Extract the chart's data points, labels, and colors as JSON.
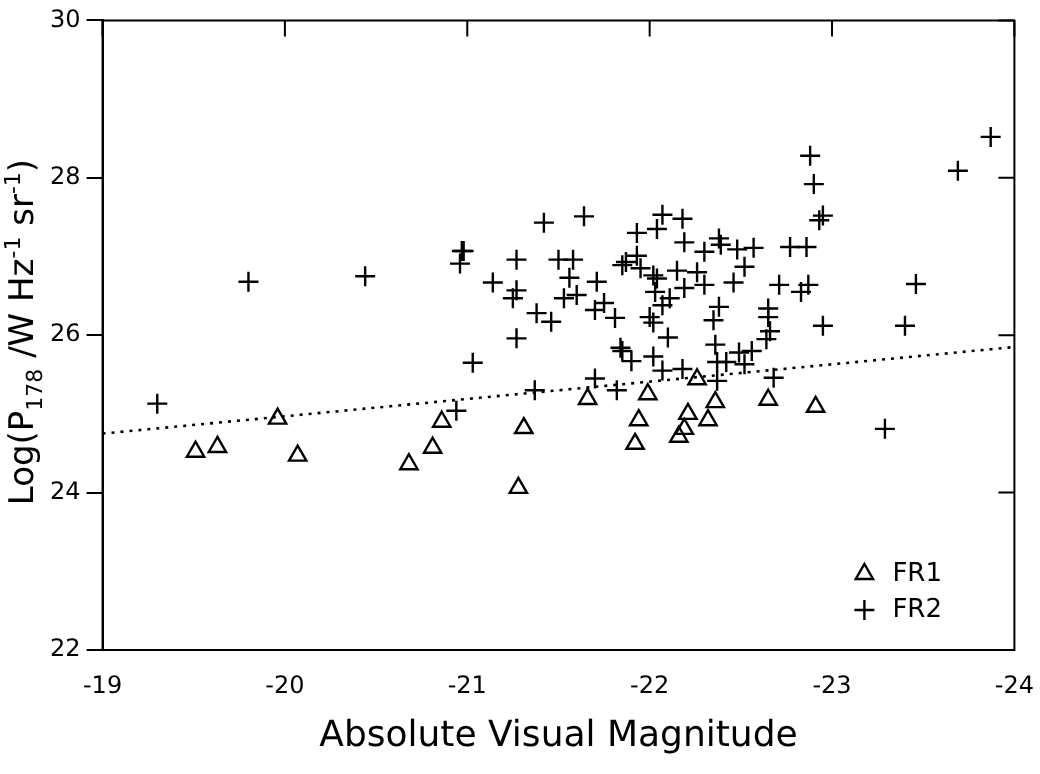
{
  "chart_data": {
    "type": "scatter",
    "xlabel": "Absolute Visual Magnitude",
    "ylabel": "Log(P$_{178}$ /W Hz$^{-1}$ sr$^{-1}$)",
    "xlim": [
      -19,
      -24
    ],
    "xticks": [
      -19,
      -20,
      -21,
      -22,
      -23,
      -24
    ],
    "ylim": [
      22,
      30
    ],
    "yticks": [
      22,
      24,
      26,
      28,
      30
    ],
    "grid": false,
    "legend": "bottom right",
    "series": [
      {
        "name": "FR1",
        "type": "scatter",
        "marker": "triangle",
        "color": "#000000",
        "x": [
          -19.51,
          -19.63,
          -19.96,
          -20.07,
          -20.68,
          -20.81,
          -20.86,
          -21.28,
          -21.31,
          -21.66,
          -21.99,
          -21.94,
          -21.92,
          -22.16,
          -22.19,
          -22.21,
          -22.26,
          -22.32,
          -22.36,
          -22.65,
          -22.91
        ],
        "values": [
          24.52,
          24.58,
          24.94,
          24.47,
          24.36,
          24.57,
          24.9,
          24.06,
          24.82,
          25.19,
          25.25,
          24.92,
          24.62,
          24.71,
          24.81,
          25.0,
          25.44,
          24.92,
          25.15,
          25.18,
          25.09
        ]
      },
      {
        "name": "FR2",
        "type": "scatter",
        "marker": "cross",
        "color": "#000000",
        "x": [
          -19.3,
          -19.8,
          -20.44,
          -20.97,
          -20.98,
          -20.96,
          -20.94,
          -21.03,
          -21.14,
          -21.27,
          -21.42,
          -21.27,
          -21.25,
          -21.27,
          -21.38,
          -21.46,
          -21.37,
          -21.5,
          -21.58,
          -21.56,
          -21.53,
          -21.6,
          -21.64,
          -21.71,
          -21.7,
          -21.75,
          -21.81,
          -21.85,
          -21.87,
          -21.93,
          -21.93,
          -21.95,
          -22.04,
          -22.07,
          -22.18,
          -22.02,
          -22.04,
          -22.03,
          -22.07,
          -22.0,
          -22.02,
          -22.11,
          -22.15,
          -22.19,
          -22.19,
          -22.26,
          -22.3,
          -22.3,
          -22.38,
          -22.39,
          -22.48,
          -22.57,
          -22.52,
          -22.46,
          -22.38,
          -22.35,
          -22.1,
          -21.84,
          -21.85,
          -21.9,
          -22.02,
          -22.07,
          -22.18,
          -22.36,
          -22.37,
          -22.42,
          -22.37,
          -22.49,
          -22.56,
          -22.52,
          -22.65,
          -22.65,
          -22.64,
          -22.66,
          -22.68,
          -22.71,
          -22.77,
          -22.86,
          -22.83,
          -22.87,
          -22.88,
          -22.9,
          -22.93,
          -22.95,
          -22.95,
          -21.82,
          -21.7,
          -23.29,
          -23.4,
          -23.46,
          -23.69,
          -23.87
        ],
        "values": [
          25.13,
          26.68,
          26.75,
          27.07,
          27.07,
          26.91,
          25.04,
          25.65,
          26.67,
          26.96,
          27.43,
          26.57,
          26.47,
          25.96,
          26.28,
          26.17,
          25.3,
          26.96,
          26.96,
          26.73,
          26.47,
          26.51,
          27.51,
          26.68,
          26.32,
          26.41,
          26.22,
          26.89,
          26.93,
          27.3,
          27.01,
          26.85,
          27.35,
          27.53,
          27.48,
          26.76,
          26.72,
          26.55,
          26.38,
          26.23,
          26.16,
          26.47,
          26.82,
          26.6,
          27.18,
          26.8,
          27.06,
          26.64,
          27.23,
          27.15,
          27.09,
          27.11,
          26.87,
          26.67,
          26.36,
          26.19,
          25.97,
          25.84,
          25.8,
          25.67,
          25.73,
          25.55,
          25.57,
          25.88,
          25.66,
          25.66,
          25.42,
          25.78,
          25.8,
          25.63,
          26.34,
          26.23,
          25.95,
          26.05,
          25.46,
          26.64,
          27.12,
          27.12,
          26.55,
          26.64,
          28.28,
          27.92,
          27.46,
          27.52,
          26.12,
          25.3,
          25.45,
          24.81,
          26.12,
          26.65,
          28.09,
          28.52
        ]
      },
      {
        "type": "line",
        "marker": "none",
        "line_style": "dotted",
        "color": "#000000",
        "x": [
          -19,
          -24
        ],
        "values": [
          24.75,
          25.85
        ]
      }
    ]
  }
}
